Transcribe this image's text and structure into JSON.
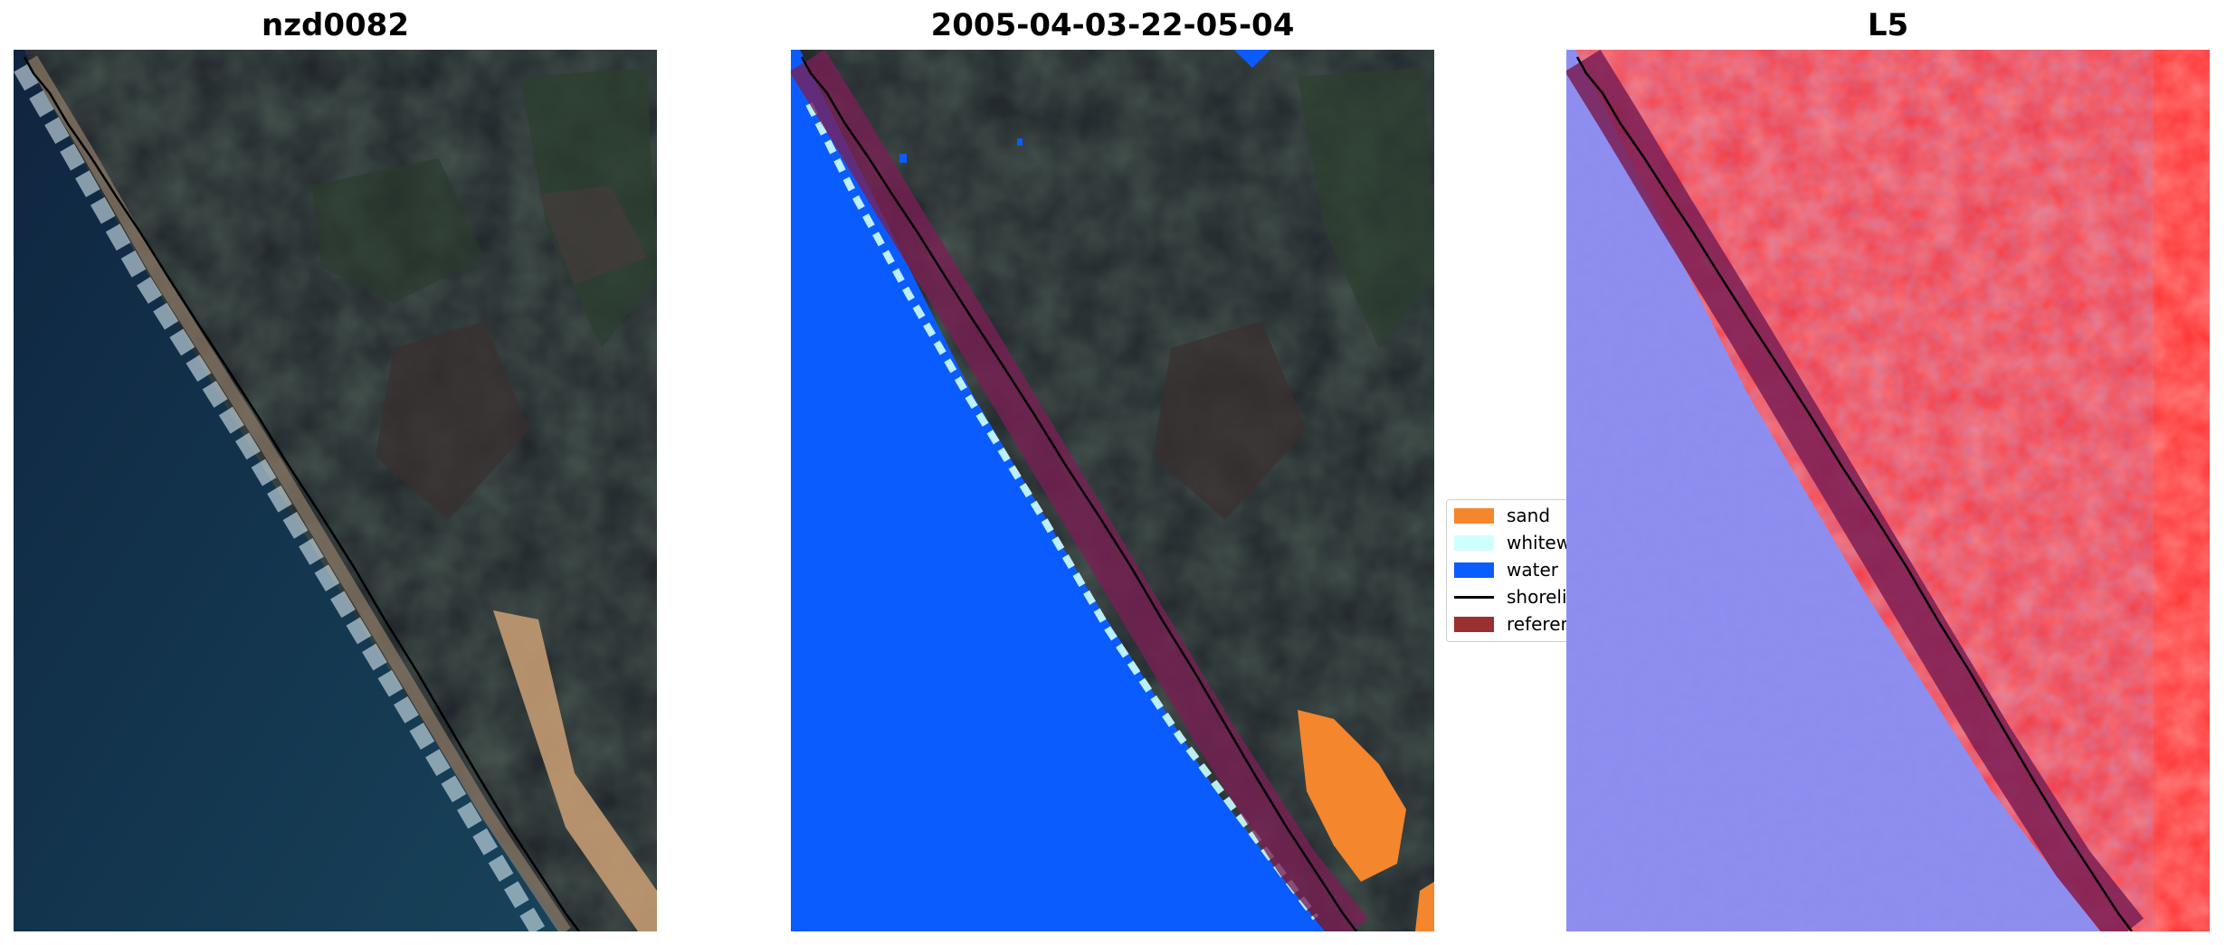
{
  "panels": {
    "rgb": {
      "title": "nzd0082"
    },
    "classified": {
      "title": "2005-04-03-22-05-04"
    },
    "index": {
      "title": "L5"
    }
  },
  "legend": {
    "items": [
      {
        "label": "sand",
        "color": "#f4862e"
      },
      {
        "label": "whitewater",
        "color": "#cfffff"
      },
      {
        "label": "water",
        "color": "#0b5cff"
      },
      {
        "label": "shoreline",
        "color": "#000000"
      },
      {
        "label": "reference",
        "color": "#9b3030"
      }
    ]
  },
  "colors": {
    "ocean": "#10253b",
    "land_dark": "#1c2128",
    "sand": "#c49a72",
    "water_class": "#0b5cff",
    "reference_buffer": "#7a1f55",
    "index_positive": "#ff1010",
    "index_negative": "#4d4de8"
  }
}
